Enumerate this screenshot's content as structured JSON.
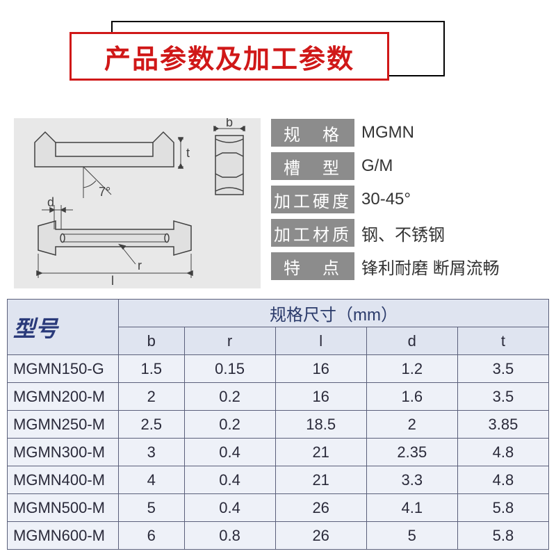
{
  "title": "产品参数及加工参数",
  "title_color": "#d01818",
  "specs": [
    {
      "label": "规　格",
      "value": "MGMN"
    },
    {
      "label": "槽　型",
      "value": "G/M"
    },
    {
      "label": "加工硬度",
      "value": "30-45°"
    },
    {
      "label": "加工材质",
      "value": "钢、不锈钢"
    },
    {
      "label": "特　点",
      "value": "锋利耐磨 断屑流畅"
    }
  ],
  "spec_label_bg": "#8c8c8c",
  "spec_label_color": "#ffffff",
  "diagram": {
    "bg": "#e8e8e8",
    "stroke": "#404040",
    "labels": {
      "b": "b",
      "t": "t",
      "angle": "7°",
      "d": "d",
      "r": "r",
      "l": "l"
    }
  },
  "table": {
    "bg": "#eef1f8",
    "border": "#5a5f7a",
    "header_bg": "#dfe4f0",
    "model_header": "型号",
    "dim_header": "规格尺寸（mm）",
    "columns": [
      "b",
      "r",
      "l",
      "d",
      "t"
    ],
    "rows": [
      {
        "model": "MGMN150-G",
        "b": "1.5",
        "r": "0.15",
        "l": "16",
        "d": "1.2",
        "t": "3.5"
      },
      {
        "model": "MGMN200-M",
        "b": "2",
        "r": "0.2",
        "l": "16",
        "d": "1.6",
        "t": "3.5"
      },
      {
        "model": "MGMN250-M",
        "b": "2.5",
        "r": "0.2",
        "l": "18.5",
        "d": "2",
        "t": "3.85"
      },
      {
        "model": "MGMN300-M",
        "b": "3",
        "r": "0.4",
        "l": "21",
        "d": "2.35",
        "t": "4.8"
      },
      {
        "model": "MGMN400-M",
        "b": "4",
        "r": "0.4",
        "l": "21",
        "d": "3.3",
        "t": "4.8"
      },
      {
        "model": "MGMN500-M",
        "b": "5",
        "r": "0.4",
        "l": "26",
        "d": "4.1",
        "t": "5.8"
      },
      {
        "model": "MGMN600-M",
        "b": "6",
        "r": "0.8",
        "l": "26",
        "d": "5",
        "t": "5.8"
      }
    ]
  }
}
